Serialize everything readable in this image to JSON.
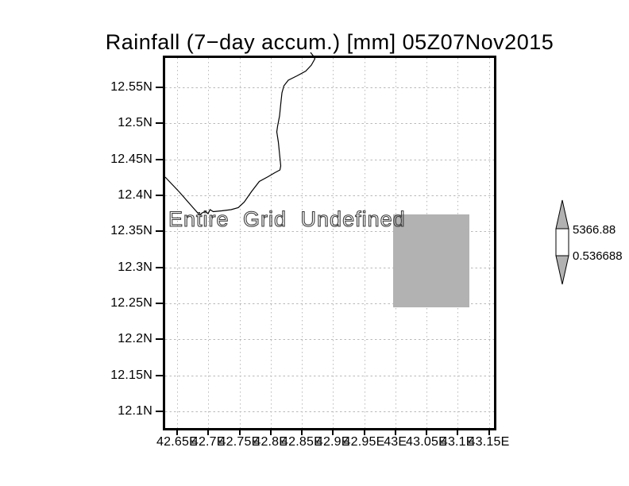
{
  "title": "Rainfall (7−day accum.) [mm] 05Z07Nov2015",
  "plot": {
    "undefined_text": "Entire Grid Undefined"
  },
  "colorbar": {
    "max_label": "5366.88",
    "min_label": "0.536688"
  },
  "colors": {
    "shade_gray": "#b2b2b2",
    "grid_dots": "#b9b9b9",
    "coastline": "#000000"
  },
  "chart_data": {
    "type": "heatmap",
    "title": "Rainfall (7−day accum.) [mm] 05Z07Nov2015",
    "status_annotation": "Entire Grid Undefined",
    "data_values": "undefined (entire grid)",
    "x_tick_labels": [
      "42.65E",
      "42.7E",
      "42.75E",
      "42.8E",
      "42.85E",
      "42.9E",
      "42.95E",
      "43E",
      "43.05E",
      "43.1E",
      "43.15E"
    ],
    "y_tick_labels": [
      "12.55N",
      "12.5N",
      "12.45N",
      "12.4N",
      "12.35N",
      "12.3N",
      "12.25N",
      "12.2N",
      "12.15N",
      "12.1N"
    ],
    "x_range_deg_east": [
      42.63,
      43.16
    ],
    "y_range_deg_north": [
      12.07,
      12.59
    ],
    "grid": true,
    "shaded_rectangle_deg": {
      "lon": [
        43.0,
        43.12
      ],
      "lat": [
        12.25,
        12.375
      ]
    },
    "colorbar": {
      "orientation": "vertical",
      "position": "right",
      "min": 0.536688,
      "max": 5366.88
    },
    "legend_position": "right"
  }
}
